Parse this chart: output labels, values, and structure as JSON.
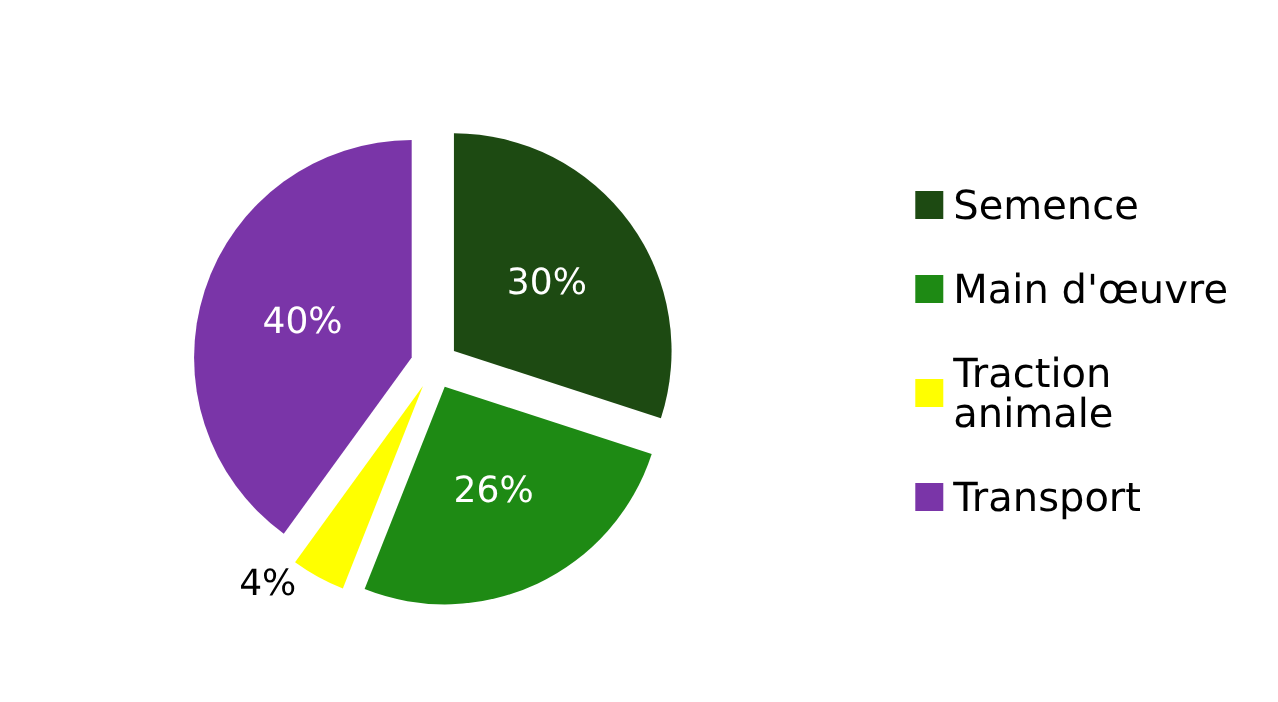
{
  "chart_data": {
    "type": "pie",
    "categories": [
      "Semence",
      "Main d'œuvre",
      "Traction animale",
      "Transport"
    ],
    "values": [
      30,
      26,
      4,
      40
    ],
    "colors": [
      "#1d4a12",
      "#1e8a14",
      "#ffff00",
      "#7a35a8"
    ],
    "value_labels": [
      "30%",
      "26%",
      "4%",
      "40%"
    ],
    "legend": "right"
  }
}
